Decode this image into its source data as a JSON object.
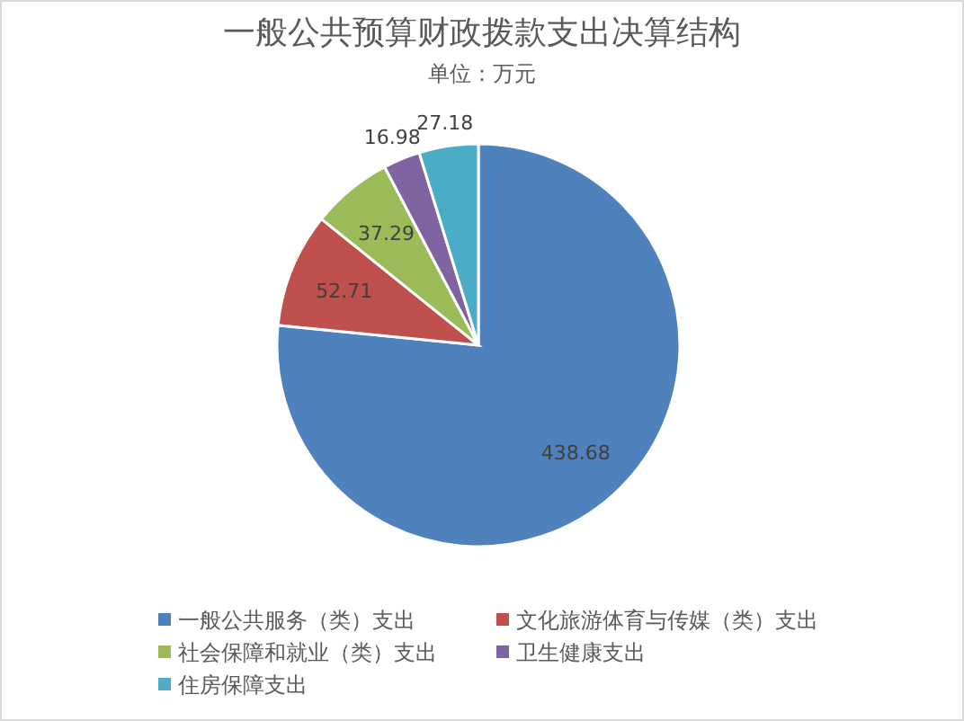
{
  "chart_data": {
    "type": "pie",
    "title": "一般公共预算财政拨款支出决算结构",
    "subtitle": "单位：万元",
    "categories": [
      "一般公共服务（类）支出",
      "文化旅游体育与传媒（类）支出",
      "社会保障和就业（类）支出",
      "卫生健康支出",
      "住房保障支出"
    ],
    "values": [
      438.68,
      52.71,
      37.29,
      16.98,
      27.18
    ],
    "colors": [
      "#4f81bd",
      "#c0504d",
      "#9bbb59",
      "#8064a2",
      "#4bacc6"
    ],
    "data_labels": true,
    "legend": "bottom"
  }
}
